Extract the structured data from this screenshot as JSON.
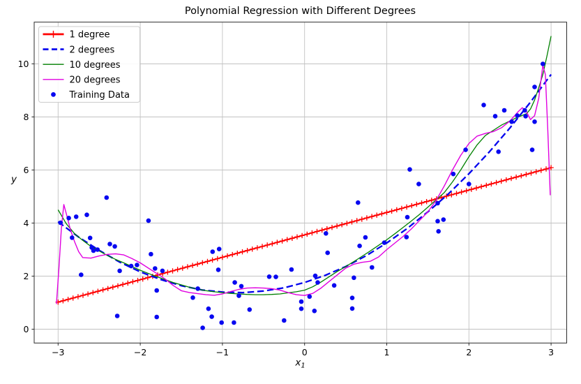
{
  "chart_data": {
    "type": "line",
    "title": "Polynomial Regression with Different Degrees",
    "xlabel": {
      "base": "x",
      "sub": "1"
    },
    "ylabel": "y",
    "xlim": [
      -3.3,
      3.2
    ],
    "ylim": [
      -0.55,
      11.6
    ],
    "grid": true,
    "legend_position": "upper left",
    "xticks": {
      "values": [
        -3,
        -2,
        -1,
        0,
        1,
        2,
        3
      ],
      "labels": [
        "−3",
        "−2",
        "−1",
        "0",
        "1",
        "2",
        "3"
      ]
    },
    "yticks": {
      "values": [
        0,
        2,
        4,
        6,
        8,
        10
      ],
      "labels": [
        "0",
        "2",
        "4",
        "6",
        "8",
        "10"
      ]
    },
    "colors": {
      "deg1": "#ff0000",
      "deg2": "#0000ee",
      "deg10": "#008000",
      "deg20": "#e000e0",
      "scatter": "#0808f0",
      "grid": "#c2c2c2",
      "spine": "#2b2b2b",
      "legend_border": "#cccccc"
    },
    "series": [
      {
        "name": "1 degree",
        "type": "line",
        "color": "#ff0000",
        "linestyle": "solid",
        "linewidth": 1.9,
        "marker": "plus",
        "marker_count": 100,
        "points": [
          [
            -3,
            1.02
          ],
          [
            3,
            6.09
          ]
        ]
      },
      {
        "name": "2 degrees",
        "type": "line",
        "color": "#0000ee",
        "linestyle": "dashed",
        "linewidth": 2.3,
        "points": [
          [
            -3,
            4.05
          ],
          [
            -2.75,
            3.47
          ],
          [
            -2.5,
            2.97
          ],
          [
            -2.25,
            2.53
          ],
          [
            -2,
            2.16
          ],
          [
            -1.75,
            1.87
          ],
          [
            -1.5,
            1.64
          ],
          [
            -1.25,
            1.48
          ],
          [
            -1,
            1.4
          ],
          [
            -0.75,
            1.38
          ],
          [
            -0.5,
            1.44
          ],
          [
            -0.25,
            1.56
          ],
          [
            0,
            1.76
          ],
          [
            0.25,
            2.03
          ],
          [
            0.5,
            2.36
          ],
          [
            0.75,
            2.77
          ],
          [
            1,
            3.25
          ],
          [
            1.25,
            3.8
          ],
          [
            1.5,
            4.42
          ],
          [
            1.75,
            5.1
          ],
          [
            2,
            5.86
          ],
          [
            2.25,
            6.69
          ],
          [
            2.5,
            7.59
          ],
          [
            2.75,
            8.56
          ],
          [
            3,
            9.6
          ]
        ]
      },
      {
        "name": "10 degrees",
        "type": "line",
        "color": "#008000",
        "linestyle": "solid",
        "linewidth": 1.3,
        "points": [
          [
            -3,
            4.5
          ],
          [
            -2.9,
            3.97
          ],
          [
            -2.8,
            3.6
          ],
          [
            -2.7,
            3.35
          ],
          [
            -2.6,
            3.12
          ],
          [
            -2.5,
            2.95
          ],
          [
            -2.4,
            2.78
          ],
          [
            -2.3,
            2.63
          ],
          [
            -2.2,
            2.5
          ],
          [
            -2.1,
            2.36
          ],
          [
            -2,
            2.22
          ],
          [
            -1.9,
            2.1
          ],
          [
            -1.8,
            1.98
          ],
          [
            -1.7,
            1.87
          ],
          [
            -1.6,
            1.76
          ],
          [
            -1.5,
            1.67
          ],
          [
            -1.4,
            1.58
          ],
          [
            -1.3,
            1.51
          ],
          [
            -1.2,
            1.45
          ],
          [
            -1.1,
            1.41
          ],
          [
            -1,
            1.38
          ],
          [
            -0.9,
            1.35
          ],
          [
            -0.8,
            1.33
          ],
          [
            -0.7,
            1.31
          ],
          [
            -0.6,
            1.3
          ],
          [
            -0.5,
            1.3
          ],
          [
            -0.4,
            1.31
          ],
          [
            -0.3,
            1.33
          ],
          [
            -0.2,
            1.37
          ],
          [
            -0.1,
            1.41
          ],
          [
            0,
            1.47
          ],
          [
            0.1,
            1.6
          ],
          [
            0.2,
            1.78
          ],
          [
            0.3,
            1.98
          ],
          [
            0.4,
            2.18
          ],
          [
            0.5,
            2.36
          ],
          [
            0.6,
            2.55
          ],
          [
            0.7,
            2.75
          ],
          [
            0.8,
            2.95
          ],
          [
            0.9,
            3.16
          ],
          [
            1,
            3.37
          ],
          [
            1.1,
            3.6
          ],
          [
            1.2,
            3.84
          ],
          [
            1.3,
            4.08
          ],
          [
            1.4,
            4.33
          ],
          [
            1.5,
            4.6
          ],
          [
            1.6,
            4.87
          ],
          [
            1.7,
            5.15
          ],
          [
            1.8,
            5.55
          ],
          [
            1.9,
            6
          ],
          [
            2,
            6.5
          ],
          [
            2.1,
            6.95
          ],
          [
            2.2,
            7.3
          ],
          [
            2.3,
            7.5
          ],
          [
            2.4,
            7.7
          ],
          [
            2.5,
            7.85
          ],
          [
            2.6,
            8
          ],
          [
            2.7,
            8.12
          ],
          [
            2.75,
            8.3
          ],
          [
            2.8,
            8.64
          ],
          [
            2.85,
            9.1
          ],
          [
            2.9,
            9.6
          ],
          [
            2.95,
            10.3
          ],
          [
            3,
            11.05
          ]
        ]
      },
      {
        "name": "20 degrees",
        "type": "line",
        "color": "#e000e0",
        "linestyle": "solid",
        "linewidth": 1.4,
        "points": [
          [
            -3.02,
            0.95
          ],
          [
            -2.99,
            2.3
          ],
          [
            -2.96,
            3.8
          ],
          [
            -2.93,
            4.7
          ],
          [
            -2.9,
            4.35
          ],
          [
            -2.85,
            3.75
          ],
          [
            -2.8,
            3.3
          ],
          [
            -2.75,
            2.92
          ],
          [
            -2.7,
            2.7
          ],
          [
            -2.6,
            2.68
          ],
          [
            -2.5,
            2.76
          ],
          [
            -2.4,
            2.82
          ],
          [
            -2.3,
            2.84
          ],
          [
            -2.2,
            2.8
          ],
          [
            -2.1,
            2.66
          ],
          [
            -2,
            2.5
          ],
          [
            -1.9,
            2.3
          ],
          [
            -1.8,
            2.1
          ],
          [
            -1.7,
            1.9
          ],
          [
            -1.6,
            1.65
          ],
          [
            -1.5,
            1.45
          ],
          [
            -1.4,
            1.38
          ],
          [
            -1.3,
            1.34
          ],
          [
            -1.2,
            1.3
          ],
          [
            -1.1,
            1.28
          ],
          [
            -1,
            1.33
          ],
          [
            -0.9,
            1.42
          ],
          [
            -0.8,
            1.5
          ],
          [
            -0.7,
            1.55
          ],
          [
            -0.6,
            1.56
          ],
          [
            -0.5,
            1.55
          ],
          [
            -0.4,
            1.53
          ],
          [
            -0.3,
            1.47
          ],
          [
            -0.2,
            1.38
          ],
          [
            -0.1,
            1.3
          ],
          [
            0,
            1.27
          ],
          [
            0.1,
            1.35
          ],
          [
            0.2,
            1.55
          ],
          [
            0.3,
            1.8
          ],
          [
            0.4,
            2.05
          ],
          [
            0.5,
            2.3
          ],
          [
            0.6,
            2.45
          ],
          [
            0.7,
            2.52
          ],
          [
            0.8,
            2.56
          ],
          [
            0.9,
            2.72
          ],
          [
            1,
            3
          ],
          [
            1.1,
            3.25
          ],
          [
            1.2,
            3.5
          ],
          [
            1.3,
            3.78
          ],
          [
            1.4,
            4.1
          ],
          [
            1.5,
            4.42
          ],
          [
            1.6,
            4.85
          ],
          [
            1.7,
            5.4
          ],
          [
            1.8,
            6
          ],
          [
            1.9,
            6.55
          ],
          [
            2,
            7
          ],
          [
            2.1,
            7.28
          ],
          [
            2.2,
            7.38
          ],
          [
            2.3,
            7.45
          ],
          [
            2.4,
            7.6
          ],
          [
            2.5,
            7.85
          ],
          [
            2.6,
            8.2
          ],
          [
            2.65,
            8.35
          ],
          [
            2.7,
            8.2
          ],
          [
            2.75,
            7.9
          ],
          [
            2.8,
            8.05
          ],
          [
            2.85,
            8.7
          ],
          [
            2.9,
            9.95
          ],
          [
            2.93,
            9.6
          ],
          [
            2.96,
            7.5
          ],
          [
            2.99,
            5.05
          ]
        ]
      },
      {
        "name": "Training Data",
        "type": "scatter",
        "color": "#0808f0",
        "marker": "dot",
        "marker_size": 3.3,
        "points": [
          [
            -2.97,
            4.01
          ],
          [
            -2.87,
            4.19
          ],
          [
            -2.83,
            3.45
          ],
          [
            -2.78,
            4.24
          ],
          [
            -2.72,
            2.05
          ],
          [
            -2.65,
            4.31
          ],
          [
            -2.61,
            3.44
          ],
          [
            -2.59,
            3.08
          ],
          [
            -2.57,
            2.96
          ],
          [
            -2.52,
            3
          ],
          [
            -2.41,
            4.96
          ],
          [
            -2.37,
            3.21
          ],
          [
            -2.31,
            3.12
          ],
          [
            -2.28,
            0.5
          ],
          [
            -2.25,
            2.2
          ],
          [
            -2.11,
            2.38
          ],
          [
            -2.04,
            2.42
          ],
          [
            -1.9,
            4.09
          ],
          [
            -1.87,
            2.83
          ],
          [
            -1.82,
            2.29
          ],
          [
            -1.8,
            1.46
          ],
          [
            -1.8,
            0.46
          ],
          [
            -1.73,
            2.2
          ],
          [
            -1.36,
            1.19
          ],
          [
            -1.3,
            1.53
          ],
          [
            -1.24,
            0.05
          ],
          [
            -1.17,
            0.77
          ],
          [
            -1.13,
            0.47
          ],
          [
            -1.12,
            2.92
          ],
          [
            -1.05,
            2.24
          ],
          [
            -1.04,
            3.02
          ],
          [
            -1.01,
            0.25
          ],
          [
            -0.86,
            0.25
          ],
          [
            -0.85,
            1.76
          ],
          [
            -0.8,
            1.26
          ],
          [
            -0.77,
            1.62
          ],
          [
            -0.67,
            0.74
          ],
          [
            -0.43,
            1.98
          ],
          [
            -0.35,
            1.97
          ],
          [
            -0.25,
            0.33
          ],
          [
            -0.16,
            2.25
          ],
          [
            -0.04,
            1.04
          ],
          [
            -0.04,
            0.77
          ],
          [
            0.06,
            1.23
          ],
          [
            0.12,
            0.69
          ],
          [
            0.13,
            2.01
          ],
          [
            0.16,
            1.76
          ],
          [
            0.26,
            3.61
          ],
          [
            0.28,
            2.88
          ],
          [
            0.36,
            1.65
          ],
          [
            0.58,
            1.18
          ],
          [
            0.58,
            0.78
          ],
          [
            0.6,
            1.94
          ],
          [
            0.65,
            4.77
          ],
          [
            0.67,
            3.14
          ],
          [
            0.74,
            3.46
          ],
          [
            0.82,
            2.33
          ],
          [
            0.97,
            3.26
          ],
          [
            1.24,
            3.47
          ],
          [
            1.25,
            4.22
          ],
          [
            1.28,
            6.02
          ],
          [
            1.39,
            5.47
          ],
          [
            1.62,
            4.75
          ],
          [
            1.62,
            4.07
          ],
          [
            1.63,
            3.69
          ],
          [
            1.69,
            4.13
          ],
          [
            1.81,
            5.85
          ],
          [
            1.96,
            6.76
          ],
          [
            2,
            5.47
          ],
          [
            2.18,
            8.45
          ],
          [
            2.32,
            8.03
          ],
          [
            2.36,
            6.69
          ],
          [
            2.43,
            8.25
          ],
          [
            2.52,
            7.82
          ],
          [
            2.59,
            8.05
          ],
          [
            2.68,
            8.25
          ],
          [
            2.69,
            8.03
          ],
          [
            2.77,
            6.76
          ],
          [
            2.8,
            9.13
          ],
          [
            2.8,
            7.82
          ],
          [
            2.9,
            10
          ]
        ]
      }
    ]
  }
}
